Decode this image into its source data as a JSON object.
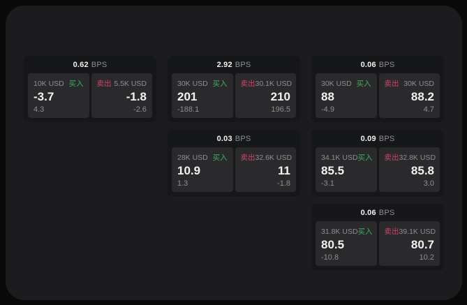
{
  "theme": {
    "page_bg": "#0a0a0b",
    "panel_bg": "#1c1c1e",
    "card_bg": "#161719",
    "box_bg": "#2a2a2c",
    "text_primary": "#f2f2f2",
    "text_muted": "#8f8f90",
    "buy_color": "#3fae5c",
    "sell_color": "#cf4467"
  },
  "labels": {
    "bps_unit": "BPS",
    "buy": "买入",
    "sell": "卖出"
  },
  "cards": [
    {
      "bps": "0.62",
      "row": 1,
      "col": 1,
      "buy": {
        "amount": "10K USD",
        "value": "-3.7",
        "delta": "4.3"
      },
      "sell": {
        "amount": "5.5K USD",
        "value": "-1.8",
        "delta": "-2.6"
      }
    },
    {
      "bps": "2.92",
      "row": 1,
      "col": 2,
      "buy": {
        "amount": "30K USD",
        "value": "201",
        "delta": "-188.1"
      },
      "sell": {
        "amount": "30.1K USD",
        "value": "210",
        "delta": "196.5"
      }
    },
    {
      "bps": "0.06",
      "row": 1,
      "col": 3,
      "buy": {
        "amount": "30K USD",
        "value": "88",
        "delta": "-4.9"
      },
      "sell": {
        "amount": "30K USD",
        "value": "88.2",
        "delta": "4.7"
      }
    },
    {
      "bps": "0.03",
      "row": 2,
      "col": 2,
      "buy": {
        "amount": "28K USD",
        "value": "10.9",
        "delta": "1.3"
      },
      "sell": {
        "amount": "32.6K USD",
        "value": "11",
        "delta": "-1.8"
      }
    },
    {
      "bps": "0.09",
      "row": 2,
      "col": 3,
      "buy": {
        "amount": "34.1K USD",
        "value": "85.5",
        "delta": "-3.1"
      },
      "sell": {
        "amount": "32.8K USD",
        "value": "85.8",
        "delta": "3.0"
      }
    },
    {
      "bps": "0.06",
      "row": 3,
      "col": 3,
      "buy": {
        "amount": "31.8K USD",
        "value": "80.5",
        "delta": "-10.8"
      },
      "sell": {
        "amount": "39.1K USD",
        "value": "80.7",
        "delta": "10.2"
      }
    }
  ]
}
